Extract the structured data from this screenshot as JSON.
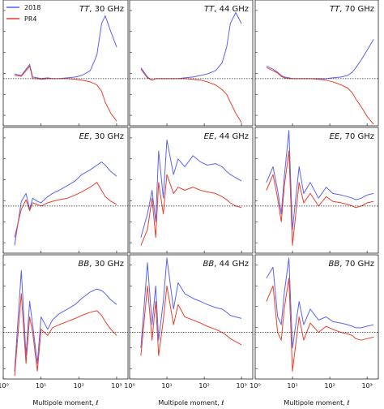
{
  "chart_data": {
    "type": "line",
    "layout": "3x3 grid of panels, shared log x axis",
    "xscale": "log",
    "xlim": [
      1,
      2000
    ],
    "xticks": [
      {
        "value": 1,
        "label": "10⁰"
      },
      {
        "value": 10,
        "label": "10¹"
      },
      {
        "value": 100,
        "label": "10²"
      },
      {
        "value": 1000,
        "label": "10³"
      }
    ],
    "xlabel": "Multipole moment, ℓ",
    "ylabel": "",
    "reference_line": "dotted horizontal line at 0 in each panel",
    "legend": {
      "placement": "top-left",
      "entries": [
        "2018",
        "PR4"
      ]
    },
    "colors": {
      "2018": "#5b63f0",
      "PR4": "#e8402c"
    },
    "panels": [
      {
        "spectrum": "TT",
        "frequency": "30 GHz",
        "title": "TT, 30 GHz",
        "ylim": [
          -3,
          5
        ],
        "series": [
          {
            "name": "2018",
            "x": [
              2,
              3,
              4,
              5,
              6,
              8,
              10,
              15,
              20,
              30,
              50,
              80,
              120,
              200,
              300,
              400,
              500,
              700,
              1000
            ],
            "values": [
              0.3,
              0.2,
              0.6,
              0.9,
              0.1,
              0.05,
              0.0,
              0.05,
              0.0,
              0.0,
              0.05,
              0.1,
              0.2,
              0.5,
              1.5,
              3.5,
              4.0,
              3.0,
              2.0
            ]
          },
          {
            "name": "PR4",
            "x": [
              2,
              3,
              4,
              5,
              6,
              8,
              10,
              15,
              20,
              30,
              50,
              80,
              120,
              200,
              300,
              400,
              500,
              700,
              1000
            ],
            "values": [
              0.2,
              0.15,
              0.5,
              0.8,
              0.0,
              0.0,
              -0.05,
              0.0,
              0.0,
              0.0,
              0.0,
              -0.05,
              -0.1,
              -0.2,
              -0.4,
              -0.8,
              -1.5,
              -2.2,
              -2.7
            ]
          }
        ]
      },
      {
        "spectrum": "TT",
        "frequency": "44 GHz",
        "title": "TT, 44 GHz",
        "ylim": [
          -3,
          5
        ],
        "series": [
          {
            "name": "2018",
            "x": [
              2,
              3,
              4,
              5,
              6,
              8,
              10,
              15,
              20,
              30,
              50,
              80,
              120,
              200,
              300,
              400,
              500,
              700,
              1000
            ],
            "values": [
              0.7,
              0.1,
              -0.1,
              0.0,
              0.0,
              0.0,
              0.0,
              0.0,
              0.0,
              0.05,
              0.1,
              0.2,
              0.3,
              0.5,
              1.0,
              2.0,
              3.5,
              4.2,
              3.5
            ]
          },
          {
            "name": "PR4",
            "x": [
              2,
              3,
              4,
              5,
              6,
              8,
              10,
              15,
              20,
              30,
              50,
              80,
              120,
              200,
              300,
              400,
              500,
              700,
              1000
            ],
            "values": [
              0.6,
              0.05,
              -0.1,
              0.0,
              0.0,
              0.0,
              0.0,
              0.0,
              0.0,
              0.0,
              -0.05,
              -0.1,
              -0.2,
              -0.4,
              -0.7,
              -1.0,
              -1.5,
              -2.2,
              -2.8
            ]
          }
        ]
      },
      {
        "spectrum": "TT",
        "frequency": "70 GHz",
        "title": "TT, 70 GHz",
        "ylim": [
          -3,
          5
        ],
        "series": [
          {
            "name": "2018",
            "x": [
              2,
              3,
              4,
              5,
              6,
              8,
              10,
              15,
              20,
              30,
              50,
              80,
              120,
              200,
              300,
              400,
              500,
              700,
              1000,
              1500
            ],
            "values": [
              0.8,
              0.6,
              0.4,
              0.2,
              0.1,
              0.05,
              0.0,
              0.0,
              0.0,
              0.0,
              0.0,
              0.0,
              0.05,
              0.1,
              0.2,
              0.4,
              0.7,
              1.2,
              1.8,
              2.5
            ]
          },
          {
            "name": "PR4",
            "x": [
              2,
              3,
              4,
              5,
              6,
              8,
              10,
              15,
              20,
              30,
              50,
              80,
              120,
              200,
              300,
              400,
              500,
              700,
              1000,
              1500
            ],
            "values": [
              0.7,
              0.5,
              0.35,
              0.15,
              0.05,
              0.0,
              0.0,
              0.0,
              0.0,
              0.0,
              -0.05,
              -0.1,
              -0.2,
              -0.4,
              -0.6,
              -0.9,
              -1.3,
              -1.8,
              -2.4,
              -2.9
            ]
          }
        ]
      },
      {
        "spectrum": "EE",
        "frequency": "30 GHz",
        "title": "EE, 30 GHz",
        "ylim": [
          -3,
          5
        ],
        "series": [
          {
            "name": "2018",
            "x": [
              2,
              3,
              4,
              5,
              6,
              8,
              10,
              15,
              20,
              30,
              50,
              80,
              120,
              200,
              300,
              400,
              500,
              700,
              1000
            ],
            "values": [
              -2.5,
              0.3,
              0.8,
              -0.2,
              0.5,
              0.3,
              0.2,
              0.6,
              0.8,
              1.0,
              1.3,
              1.6,
              2.0,
              2.3,
              2.6,
              2.8,
              2.6,
              2.2,
              1.9
            ]
          },
          {
            "name": "PR4",
            "x": [
              2,
              3,
              4,
              5,
              6,
              8,
              10,
              15,
              20,
              30,
              50,
              80,
              120,
              200,
              300,
              400,
              500,
              700,
              1000
            ],
            "values": [
              -2.0,
              -0.2,
              0.4,
              -0.3,
              0.2,
              0.1,
              0.0,
              0.2,
              0.3,
              0.4,
              0.5,
              0.7,
              0.9,
              1.2,
              1.5,
              1.0,
              0.6,
              0.3,
              0.1
            ]
          }
        ]
      },
      {
        "spectrum": "EE",
        "frequency": "44 GHz",
        "title": "EE, 44 GHz",
        "ylim": [
          -3,
          5
        ],
        "series": [
          {
            "name": "2018",
            "x": [
              2,
              3,
              4,
              5,
              6,
              8,
              10,
              15,
              20,
              30,
              50,
              80,
              120,
              200,
              300,
              400,
              500,
              700,
              1000
            ],
            "values": [
              -2.0,
              -0.5,
              1.0,
              -1.0,
              3.5,
              0.5,
              4.2,
              2.0,
              3.0,
              2.5,
              3.2,
              2.8,
              2.6,
              2.7,
              2.5,
              2.2,
              2.0,
              1.8,
              1.6
            ]
          },
          {
            "name": "PR4",
            "x": [
              2,
              3,
              4,
              5,
              6,
              8,
              10,
              15,
              20,
              30,
              50,
              80,
              120,
              200,
              300,
              400,
              500,
              700,
              1000
            ],
            "values": [
              -2.5,
              -1.5,
              0.5,
              -2.0,
              1.5,
              -0.5,
              2.0,
              0.8,
              1.2,
              1.0,
              1.2,
              1.0,
              0.9,
              0.8,
              0.6,
              0.4,
              0.2,
              0.0,
              -0.1
            ]
          }
        ]
      },
      {
        "spectrum": "EE",
        "frequency": "70 GHz",
        "title": "EE, 70 GHz",
        "ylim": [
          -3,
          5
        ],
        "series": [
          {
            "name": "2018",
            "x": [
              2,
              3,
              4,
              5,
              6,
              8,
              10,
              15,
              20,
              30,
              50,
              80,
              120,
              200,
              300,
              400,
              500,
              700,
              1000,
              1500
            ],
            "values": [
              1.5,
              2.5,
              1.0,
              -0.5,
              1.8,
              4.8,
              -1.5,
              2.5,
              0.8,
              1.5,
              0.5,
              1.2,
              0.8,
              0.7,
              0.6,
              0.5,
              0.4,
              0.5,
              0.7,
              0.8
            ]
          },
          {
            "name": "PR4",
            "x": [
              2,
              3,
              4,
              5,
              6,
              8,
              10,
              15,
              20,
              30,
              50,
              80,
              120,
              200,
              300,
              400,
              500,
              700,
              1000,
              1500
            ],
            "values": [
              1.0,
              2.0,
              0.5,
              -1.0,
              1.2,
              3.5,
              -2.5,
              1.5,
              0.2,
              0.8,
              0.0,
              0.6,
              0.3,
              0.2,
              0.1,
              0.0,
              -0.1,
              0.0,
              0.2,
              0.3
            ]
          }
        ]
      },
      {
        "spectrum": "BB",
        "frequency": "30 GHz",
        "title": "BB, 30 GHz",
        "ylim": [
          -3,
          5
        ],
        "series": [
          {
            "name": "2018",
            "x": [
              2,
              3,
              4,
              5,
              6,
              8,
              10,
              15,
              20,
              30,
              50,
              80,
              120,
              200,
              300,
              400,
              500,
              700,
              1000
            ],
            "values": [
              -2.5,
              4.0,
              -1.5,
              2.0,
              0.5,
              -2.0,
              1.0,
              0.2,
              0.8,
              1.2,
              1.5,
              1.8,
              2.2,
              2.6,
              2.8,
              2.7,
              2.5,
              2.1,
              1.8
            ]
          },
          {
            "name": "PR4",
            "x": [
              2,
              3,
              4,
              5,
              6,
              8,
              10,
              15,
              20,
              30,
              50,
              80,
              120,
              200,
              300,
              400,
              500,
              700,
              1000
            ],
            "values": [
              -2.8,
              2.5,
              -2.0,
              1.0,
              0.0,
              -2.5,
              0.2,
              -0.2,
              0.3,
              0.5,
              0.7,
              0.9,
              1.1,
              1.3,
              1.4,
              1.1,
              0.7,
              0.2,
              -0.2
            ]
          }
        ]
      },
      {
        "spectrum": "BB",
        "frequency": "44 GHz",
        "title": "BB, 44 GHz",
        "ylim": [
          -3,
          5
        ],
        "series": [
          {
            "name": "2018",
            "x": [
              2,
              3,
              4,
              5,
              6,
              8,
              10,
              15,
              20,
              30,
              50,
              80,
              120,
              200,
              300,
              400,
              500,
              700,
              1000
            ],
            "values": [
              -1.0,
              4.5,
              0.5,
              3.0,
              -0.5,
              2.0,
              4.8,
              1.5,
              3.2,
              2.5,
              2.2,
              2.0,
              1.8,
              1.6,
              1.5,
              1.3,
              1.1,
              1.0,
              0.9
            ]
          },
          {
            "name": "PR4",
            "x": [
              2,
              3,
              4,
              5,
              6,
              8,
              10,
              15,
              20,
              30,
              50,
              80,
              120,
              200,
              300,
              400,
              500,
              700,
              1000
            ],
            "values": [
              -1.5,
              3.0,
              -0.5,
              2.0,
              -1.5,
              0.8,
              3.0,
              0.5,
              1.8,
              1.0,
              0.8,
              0.6,
              0.4,
              0.2,
              0.0,
              -0.2,
              -0.4,
              -0.6,
              -0.8
            ]
          }
        ]
      },
      {
        "spectrum": "BB",
        "frequency": "70 GHz",
        "title": "BB, 70 GHz",
        "ylim": [
          -3,
          5
        ],
        "series": [
          {
            "name": "2018",
            "x": [
              2,
              3,
              4,
              5,
              6,
              8,
              10,
              15,
              20,
              30,
              50,
              80,
              120,
              200,
              300,
              400,
              500,
              700,
              1000,
              1500
            ],
            "values": [
              3.5,
              4.2,
              1.0,
              0.5,
              2.5,
              4.8,
              -1.0,
              2.0,
              0.5,
              1.5,
              0.8,
              1.0,
              0.7,
              0.6,
              0.5,
              0.4,
              0.3,
              0.3,
              0.4,
              0.5
            ]
          },
          {
            "name": "PR4",
            "x": [
              2,
              3,
              4,
              5,
              6,
              8,
              10,
              15,
              20,
              30,
              50,
              80,
              120,
              200,
              300,
              400,
              500,
              700,
              1000,
              1500
            ],
            "values": [
              2.0,
              3.0,
              0.0,
              -0.5,
              1.5,
              3.5,
              -2.5,
              1.0,
              -0.5,
              0.6,
              0.0,
              0.4,
              0.2,
              0.0,
              -0.1,
              -0.2,
              -0.4,
              -0.5,
              -0.4,
              -0.3
            ]
          }
        ]
      }
    ]
  }
}
